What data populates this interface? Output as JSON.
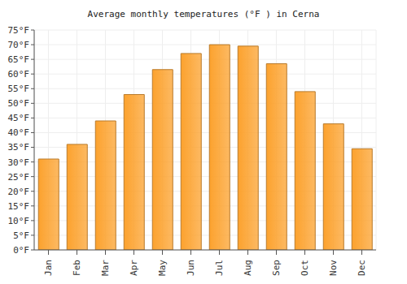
{
  "chart_data": {
    "type": "bar",
    "title": "Average monthly temperatures (°F ) in Cerna",
    "categories": [
      "Jan",
      "Feb",
      "Mar",
      "Apr",
      "May",
      "Jun",
      "Jul",
      "Aug",
      "Sep",
      "Oct",
      "Nov",
      "Dec"
    ],
    "values": [
      31,
      36,
      44,
      53,
      61.5,
      67,
      70,
      69.5,
      63.5,
      54,
      43,
      34.5
    ],
    "color": "#fca22e",
    "ylim": [
      0,
      75
    ],
    "yticks": [
      {
        "value": 0,
        "label": "0°F"
      },
      {
        "value": 5,
        "label": "5°F"
      },
      {
        "value": 10,
        "label": "10°F"
      },
      {
        "value": 15,
        "label": "15°F"
      },
      {
        "value": 20,
        "label": "20°F"
      },
      {
        "value": 25,
        "label": "25°F"
      },
      {
        "value": 30,
        "label": "30°F"
      },
      {
        "value": 35,
        "label": "35°F"
      },
      {
        "value": 40,
        "label": "40°F"
      },
      {
        "value": 45,
        "label": "45°F"
      },
      {
        "value": 50,
        "label": "50°F"
      },
      {
        "value": 55,
        "label": "55°F"
      },
      {
        "value": 60,
        "label": "60°F"
      },
      {
        "value": 65,
        "label": "65°F"
      },
      {
        "value": 70,
        "label": "70°F"
      },
      {
        "value": 75,
        "label": "75°F"
      }
    ],
    "grid": true
  }
}
